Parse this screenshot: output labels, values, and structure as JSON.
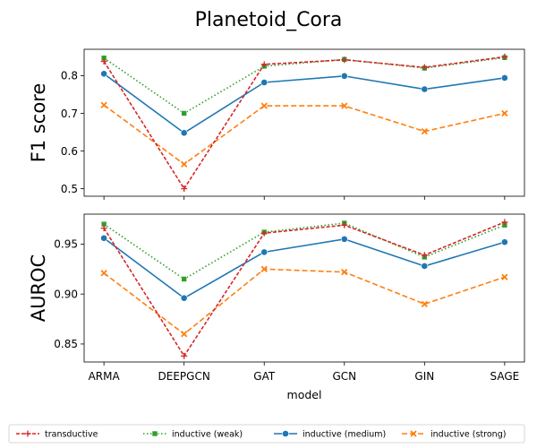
{
  "figure": {
    "title": "Planetoid_Cora",
    "xlabel": "model"
  },
  "legend": {
    "placement": "bottom",
    "entries": [
      {
        "label": "transductive",
        "color": "#d62728",
        "dash": "dashed-fine",
        "marker": "plus"
      },
      {
        "label": "inductive (weak)",
        "color": "#2ca02c",
        "dash": "dotted",
        "marker": "square"
      },
      {
        "label": "inductive (medium)",
        "color": "#1f77b4",
        "dash": "solid",
        "marker": "circle"
      },
      {
        "label": "inductive (strong)",
        "color": "#ff7f0e",
        "dash": "dashed",
        "marker": "x"
      }
    ]
  },
  "chart_data": [
    {
      "type": "line",
      "ylabel": "F1 score",
      "categories": [
        "ARMA",
        "DEEPGCN",
        "GAT",
        "GCN",
        "GIN",
        "SAGE"
      ],
      "ylim": [
        0.48,
        0.87
      ],
      "yticks": [
        0.5,
        0.6,
        0.7,
        0.8
      ],
      "ytick_labels": [
        "0.5",
        "0.6",
        "0.7",
        "0.8"
      ],
      "series": [
        {
          "name": "transductive",
          "values": [
            0.838,
            0.5,
            0.83,
            0.842,
            0.822,
            0.85
          ]
        },
        {
          "name": "inductive (weak)",
          "values": [
            0.847,
            0.7,
            0.825,
            0.843,
            0.82,
            0.848
          ]
        },
        {
          "name": "inductive (medium)",
          "values": [
            0.805,
            0.648,
            0.782,
            0.799,
            0.764,
            0.794
          ]
        },
        {
          "name": "inductive (strong)",
          "values": [
            0.722,
            0.565,
            0.72,
            0.72,
            0.652,
            0.7
          ]
        }
      ]
    },
    {
      "type": "line",
      "ylabel": "AUROC",
      "categories": [
        "ARMA",
        "DEEPGCN",
        "GAT",
        "GCN",
        "GIN",
        "SAGE"
      ],
      "ylim": [
        0.832,
        0.98
      ],
      "yticks": [
        0.85,
        0.9,
        0.95
      ],
      "ytick_labels": [
        "0.85",
        "0.90",
        "0.95"
      ],
      "series": [
        {
          "name": "transductive",
          "values": [
            0.966,
            0.838,
            0.961,
            0.969,
            0.939,
            0.972
          ]
        },
        {
          "name": "inductive (weak)",
          "values": [
            0.97,
            0.915,
            0.962,
            0.971,
            0.937,
            0.969
          ]
        },
        {
          "name": "inductive (medium)",
          "values": [
            0.956,
            0.896,
            0.942,
            0.955,
            0.928,
            0.952
          ]
        },
        {
          "name": "inductive (strong)",
          "values": [
            0.921,
            0.86,
            0.925,
            0.922,
            0.89,
            0.917
          ]
        }
      ]
    }
  ]
}
